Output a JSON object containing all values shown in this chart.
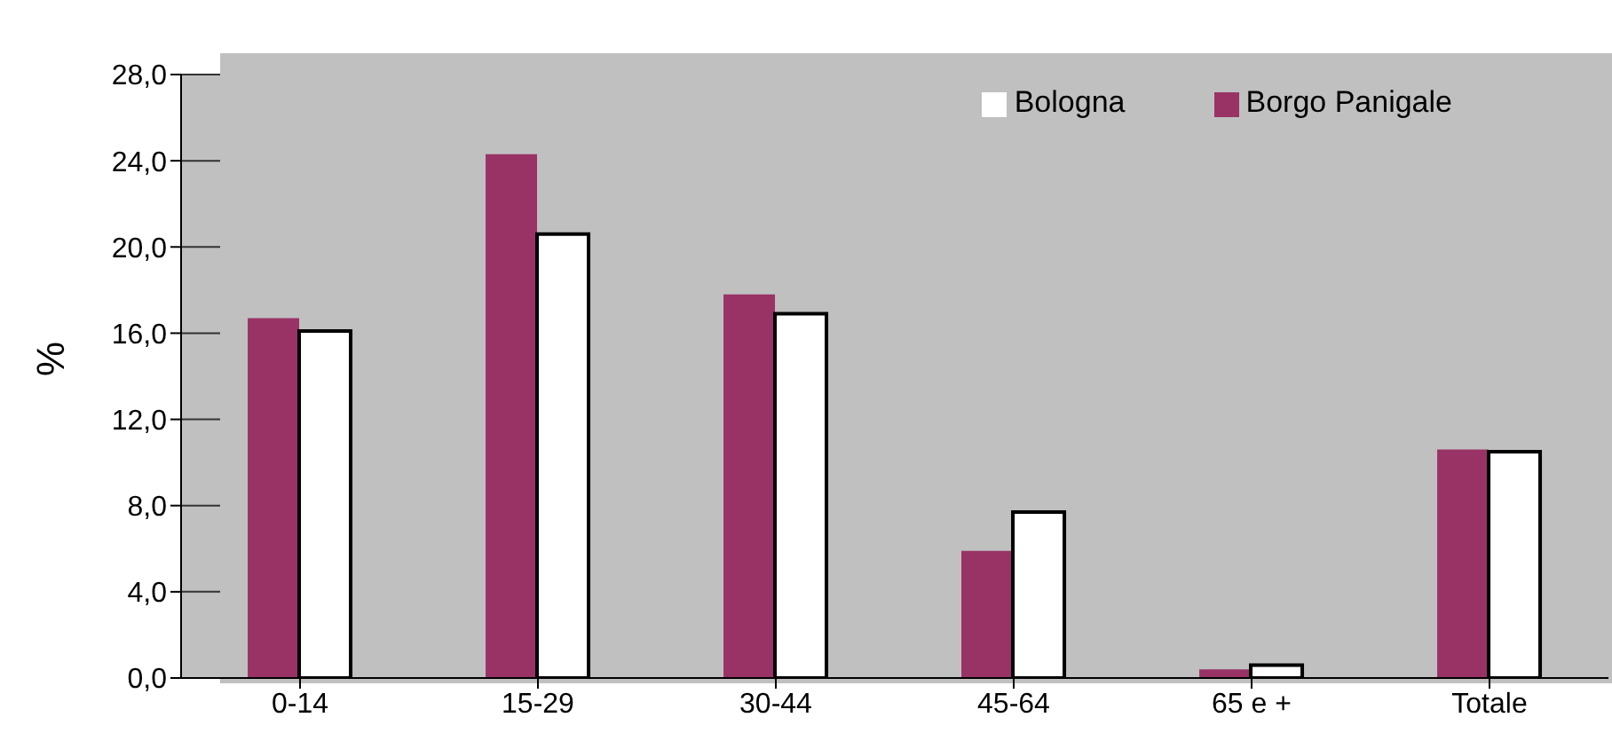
{
  "chart_data": {
    "type": "bar",
    "ylabel": "%",
    "categories": [
      "0-14",
      "15-29",
      "30-44",
      "45-64",
      "65 e +",
      "Totale"
    ],
    "series": [
      {
        "name": "Borgo Panigale",
        "color": "#993366",
        "values": [
          16.7,
          24.3,
          17.8,
          5.9,
          0.4,
          10.6
        ]
      },
      {
        "name": "Bologna",
        "color": "#ffffff",
        "values": [
          16.1,
          20.6,
          16.9,
          7.7,
          0.6,
          10.5
        ]
      }
    ],
    "ylim": [
      0,
      28
    ],
    "yticks": [
      {
        "value": 0,
        "label": "0,0"
      },
      {
        "value": 4,
        "label": "4,0"
      },
      {
        "value": 8,
        "label": "8,0"
      },
      {
        "value": 12,
        "label": "12,0"
      },
      {
        "value": 16,
        "label": "16,0"
      },
      {
        "value": 20,
        "label": "20,0"
      },
      {
        "value": 24,
        "label": "24,0"
      },
      {
        "value": 28,
        "label": "28,0"
      }
    ],
    "grid": "y",
    "legend": "top right"
  }
}
